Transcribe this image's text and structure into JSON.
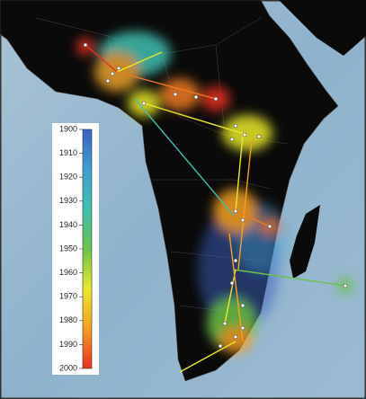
{
  "colorbar": {
    "lim": [
      1900,
      2000
    ],
    "ticks": [
      1900,
      1910,
      1920,
      1930,
      1940,
      1950,
      1960,
      1970,
      1980,
      1990,
      2000
    ],
    "colors": [
      "#3b5fc0",
      "#3fa0d0",
      "#3fc0b0",
      "#6cc24a",
      "#e8e82a",
      "#f5a020",
      "#e83020"
    ]
  }
}
